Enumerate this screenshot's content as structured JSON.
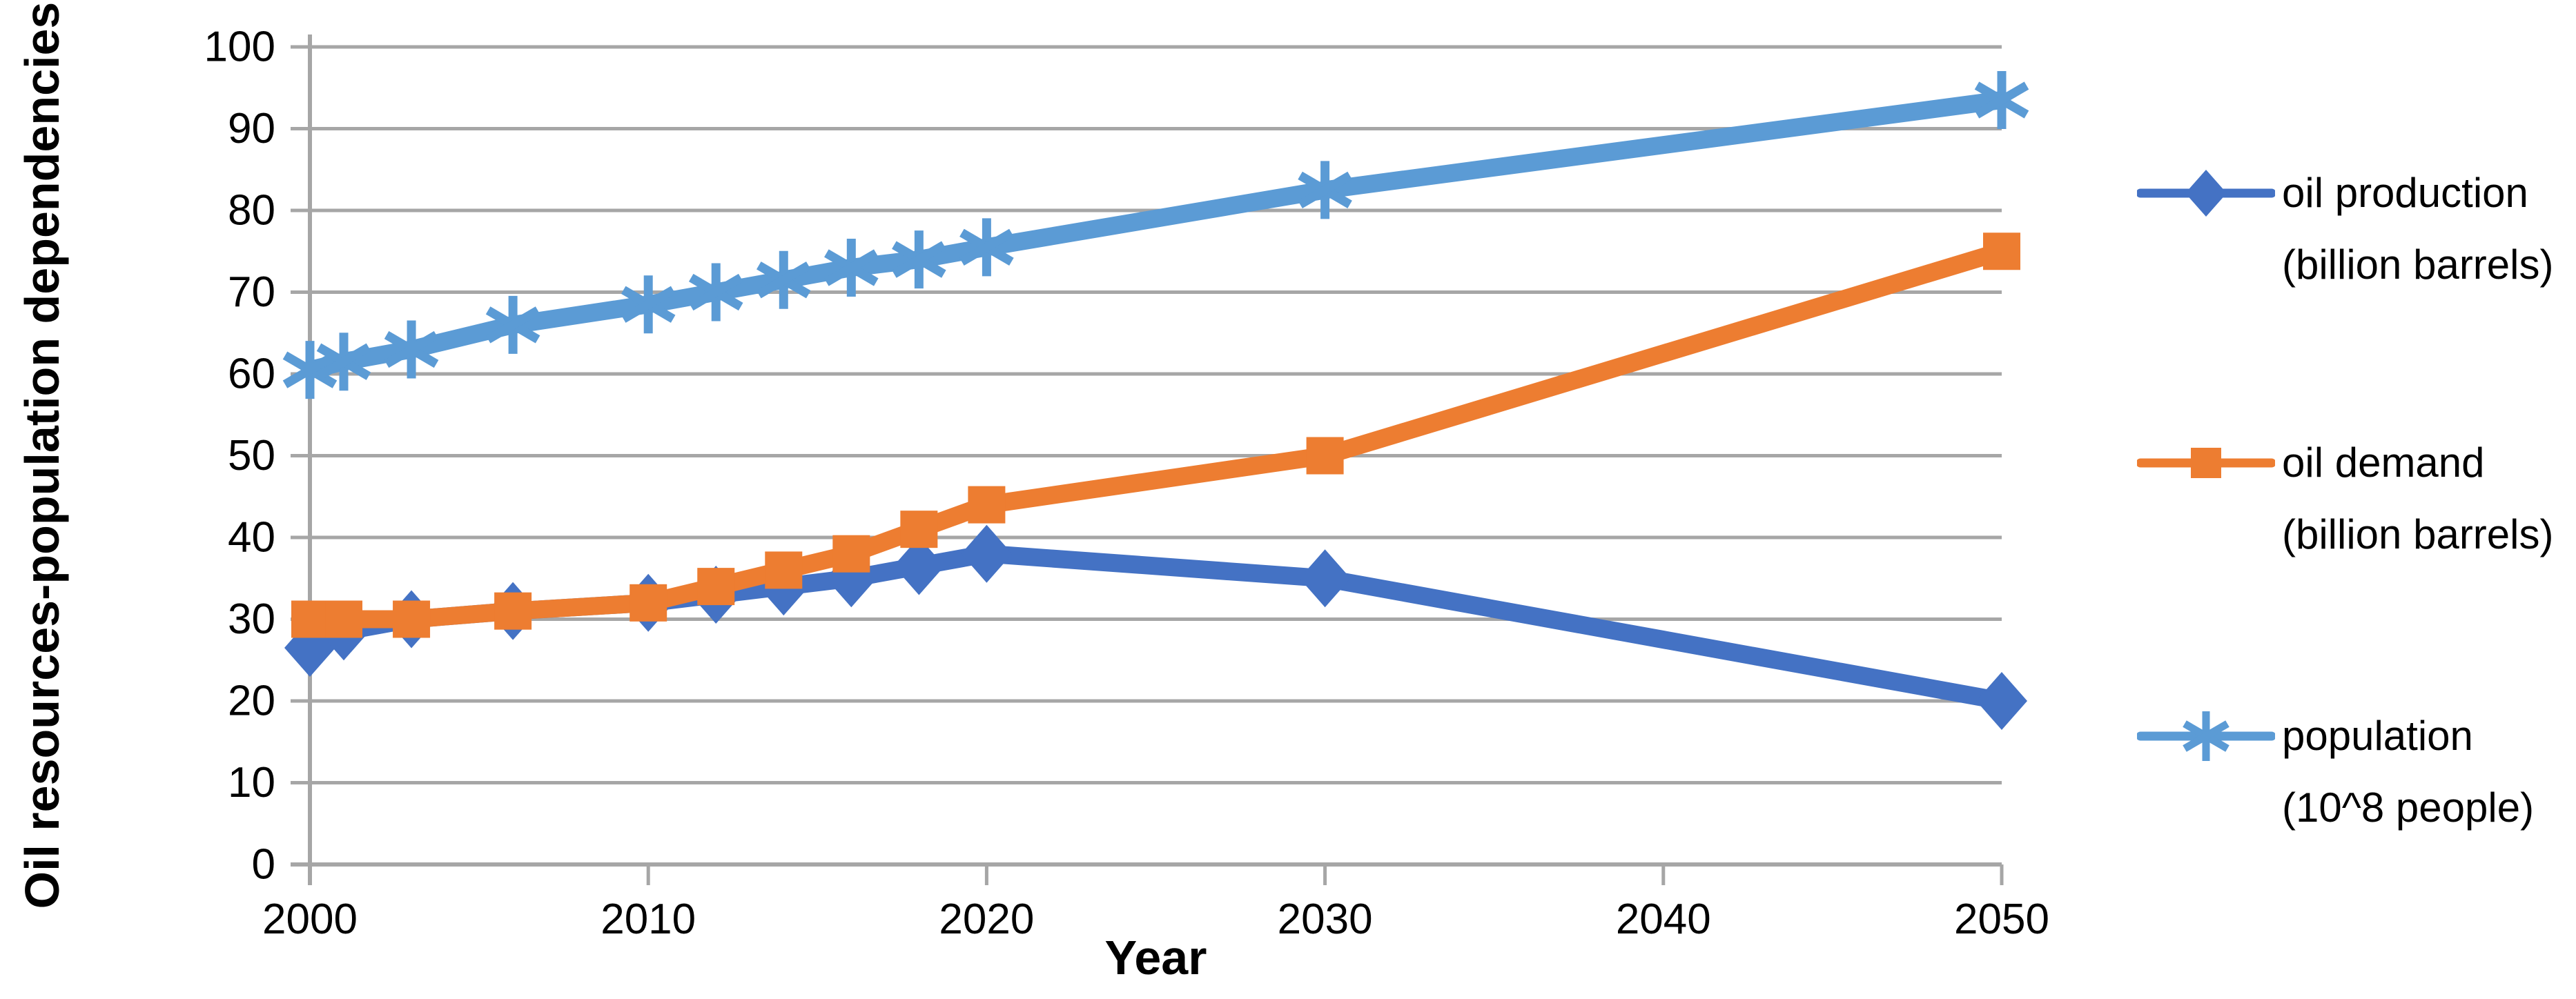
{
  "chart_data": {
    "type": "line",
    "title": "",
    "xlabel": "Year",
    "ylabel_line1": "Oil resources-population",
    "ylabel_line2": "dependencies",
    "xlim": [
      2000,
      2050
    ],
    "ylim": [
      0,
      100
    ],
    "x_ticks": [
      2000,
      2010,
      2020,
      2030,
      2040,
      2050
    ],
    "y_ticks": [
      0,
      10,
      20,
      30,
      40,
      50,
      60,
      70,
      80,
      90,
      100
    ],
    "grid": true,
    "legend_position": "right",
    "x": [
      2000,
      2001,
      2003,
      2006,
      2010,
      2012,
      2014,
      2016,
      2018,
      2020,
      2030,
      2050
    ],
    "series": [
      {
        "name": "oil production (billion barrels)",
        "legend_line1": "oil production",
        "legend_line2": "(billion barrels)",
        "color": "#4472C4",
        "marker": "diamond",
        "values": [
          26.5,
          28.5,
          30,
          31,
          32,
          33,
          34,
          35,
          36.5,
          38,
          35,
          20
        ]
      },
      {
        "name": "oil demand (billion barrels)",
        "legend_line1": "oil demand",
        "legend_line2": "(billion barrels)",
        "color": "#ED7D31",
        "marker": "square",
        "values": [
          30,
          30,
          30,
          31,
          32,
          34,
          36,
          38,
          41,
          44,
          50,
          75
        ]
      },
      {
        "name": "population (10^8 people)",
        "legend_line1": "population",
        "legend_line2": "(10^8 people)",
        "color": "#5B9BD5",
        "marker": "asterisk",
        "values": [
          60.5,
          61.5,
          63,
          66,
          68.5,
          70,
          71.5,
          73,
          74,
          75.5,
          82.5,
          93.5
        ]
      }
    ],
    "colors": {
      "gridline": "#A6A6A6",
      "axis": "#A6A6A6",
      "text": "#000000",
      "background": "#FFFFFF"
    }
  }
}
